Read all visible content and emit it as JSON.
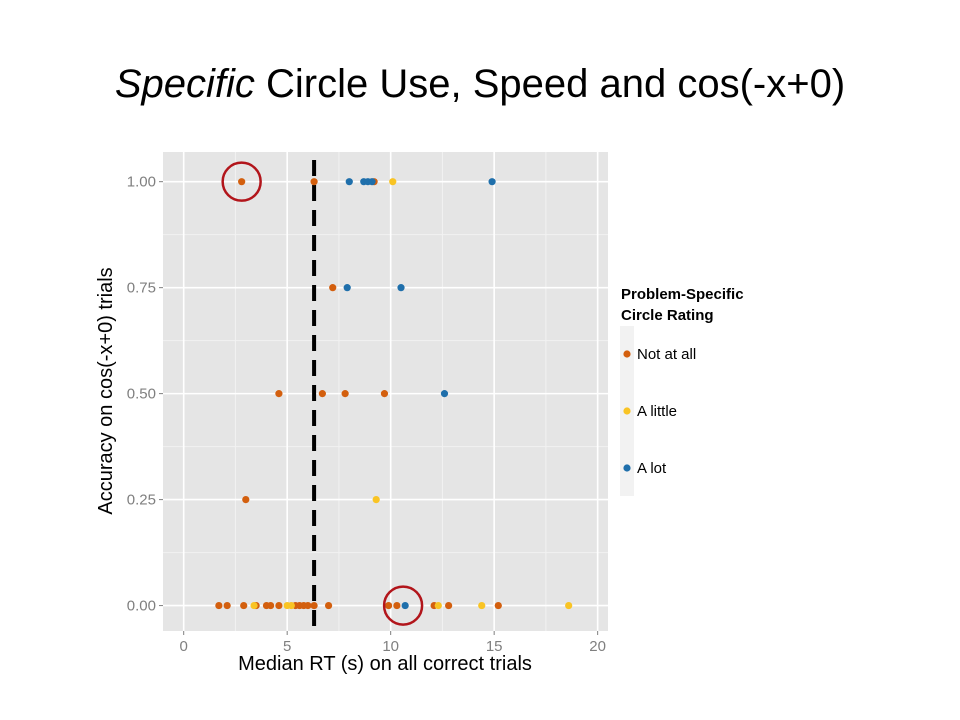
{
  "slide": {
    "title_italic": "Specific",
    "title_rest": " Circle Use, Speed and cos(-x+0)"
  },
  "chart_data": {
    "type": "scatter",
    "xlabel": "Median RT (s) on all correct trials",
    "ylabel": "Accuracy on cos(-x+0) trials",
    "xlim": [
      -1,
      20.5
    ],
    "ylim": [
      -0.06,
      1.07
    ],
    "x_ticks": [
      "0",
      "5",
      "10",
      "15",
      "20"
    ],
    "x_tick_values": [
      0,
      5,
      10,
      15,
      20
    ],
    "y_ticks": [
      "0.00",
      "0.25",
      "0.50",
      "0.75",
      "1.00"
    ],
    "y_tick_values": [
      0,
      0.25,
      0.5,
      0.75,
      1.0
    ],
    "grid": true,
    "panel_color": "#e5e5e5",
    "grid_color": "#ffffff",
    "vline": {
      "x": 6.3,
      "style": "dashed",
      "color": "#000000"
    },
    "highlight_circles": [
      {
        "x": 2.8,
        "y": 1.0,
        "color": "#b2151b"
      },
      {
        "x": 10.6,
        "y": 0.0,
        "color": "#b2151b"
      }
    ],
    "legend": {
      "title_line1": "Problem-Specific",
      "title_line2": "Circle Rating",
      "placement": "right"
    },
    "series": [
      {
        "name": "Not at all",
        "color": "#d35f0e",
        "points": [
          [
            2.8,
            1.0
          ],
          [
            6.3,
            1.0
          ],
          [
            9.2,
            1.0
          ],
          [
            7.2,
            0.75
          ],
          [
            4.6,
            0.5
          ],
          [
            6.7,
            0.5
          ],
          [
            7.8,
            0.5
          ],
          [
            9.7,
            0.5
          ],
          [
            3.0,
            0.25
          ],
          [
            1.7,
            0.0
          ],
          [
            2.1,
            0.0
          ],
          [
            2.9,
            0.0
          ],
          [
            3.5,
            0.0
          ],
          [
            4.0,
            0.0
          ],
          [
            4.2,
            0.0
          ],
          [
            4.6,
            0.0
          ],
          [
            5.4,
            0.0
          ],
          [
            5.6,
            0.0
          ],
          [
            5.8,
            0.0
          ],
          [
            6.0,
            0.0
          ],
          [
            6.3,
            0.0
          ],
          [
            7.0,
            0.0
          ],
          [
            9.9,
            0.0
          ],
          [
            10.3,
            0.0
          ],
          [
            12.1,
            0.0
          ],
          [
            12.8,
            0.0
          ],
          [
            15.2,
            0.0
          ]
        ]
      },
      {
        "name": "A little",
        "color": "#f9c424",
        "points": [
          [
            10.1,
            1.0
          ],
          [
            9.3,
            0.25
          ],
          [
            3.4,
            0.0
          ],
          [
            5.0,
            0.0
          ],
          [
            5.2,
            0.0
          ],
          [
            12.3,
            0.0
          ],
          [
            14.4,
            0.0
          ],
          [
            18.6,
            0.0
          ]
        ]
      },
      {
        "name": "A lot",
        "color": "#1f6fab",
        "points": [
          [
            8.0,
            1.0
          ],
          [
            8.7,
            1.0
          ],
          [
            8.9,
            1.0
          ],
          [
            9.1,
            1.0
          ],
          [
            14.9,
            1.0
          ],
          [
            7.9,
            0.75
          ],
          [
            10.5,
            0.75
          ],
          [
            12.6,
            0.5
          ],
          [
            10.7,
            0.0
          ]
        ]
      }
    ]
  }
}
